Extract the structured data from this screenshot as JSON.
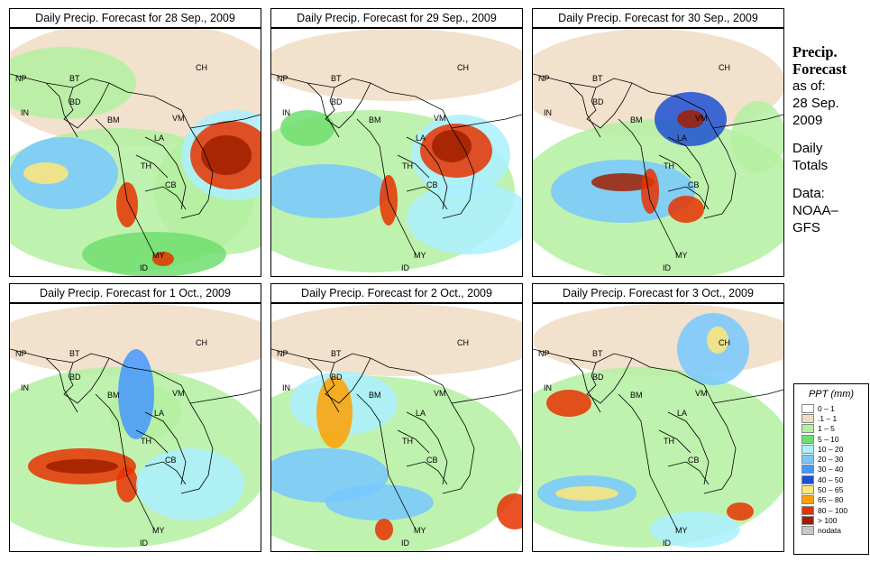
{
  "panels": [
    {
      "title": "Daily Precip. Forecast for  28 Sep., 2009"
    },
    {
      "title": "Daily Precip. Forecast for  29 Sep., 2009"
    },
    {
      "title": "Daily Precip. Forecast for  30 Sep., 2009"
    },
    {
      "title": "Daily Precip. Forecast for  1 Oct., 2009"
    },
    {
      "title": "Daily Precip. Forecast for  2 Oct., 2009"
    },
    {
      "title": "Daily Precip. Forecast for  3 Oct., 2009"
    }
  ],
  "country_labels": {
    "np": "NP",
    "bt": "BT",
    "in": "IN",
    "bd": "BD",
    "bm": "BM",
    "ch": "CH",
    "vm": "VM",
    "la": "LA",
    "th": "TH",
    "cb": "CB",
    "my": "MY",
    "id": "ID"
  },
  "side_text": {
    "title_line1": "Precip.",
    "title_line2": "Forecast",
    "asof": "as of:",
    "date_line1": "28 Sep.",
    "date_line2": "2009",
    "daily_line1": "Daily",
    "daily_line2": "Totals",
    "data_line1": "Data:",
    "data_line2": "NOAA–",
    "data_line3": "GFS"
  },
  "legend": {
    "title": "PPT (mm)",
    "items": [
      {
        "label": "0 – 1",
        "color": "#ffffff"
      },
      {
        "label": ".1 – 1",
        "color": "#f0dcc3"
      },
      {
        "label": "1 – 5",
        "color": "#b4f0a0"
      },
      {
        "label": "5 – 10",
        "color": "#6ede6e"
      },
      {
        "label": "10 – 20",
        "color": "#aaf0ff"
      },
      {
        "label": "20 – 30",
        "color": "#78c8ff"
      },
      {
        "label": "30 – 40",
        "color": "#4696ff"
      },
      {
        "label": "40 – 50",
        "color": "#1e50d2"
      },
      {
        "label": "50 – 65",
        "color": "#ffe678"
      },
      {
        "label": "65 – 80",
        "color": "#ffa000"
      },
      {
        "label": "80 – 100",
        "color": "#e63200"
      },
      {
        "label": "> 100",
        "color": "#a01e00"
      },
      {
        "label": "nodata",
        "color": "#c8c8c8"
      }
    ]
  }
}
